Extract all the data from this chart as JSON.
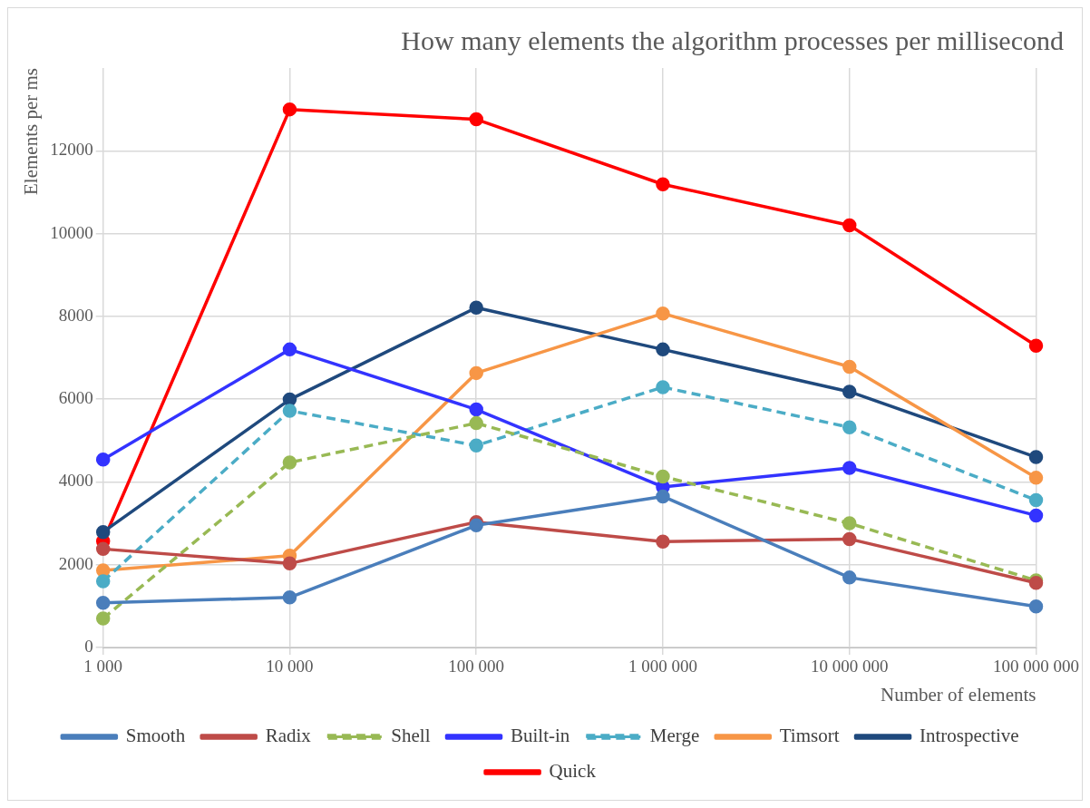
{
  "chart_data": {
    "type": "line",
    "title": "How many elements the algorithm processes per millisecond",
    "xlabel": "Number of elements",
    "ylabel": "Elements per ms",
    "categories": [
      "1 000",
      "10 000",
      "100 000",
      "1 000 000",
      "10 000 000",
      "100 000 000"
    ],
    "series": [
      {
        "name": "Smooth",
        "color": "#4a7ebb",
        "line_style": "solid",
        "values": [
          1080,
          1210,
          2950,
          3650,
          1690,
          990
        ]
      },
      {
        "name": "Radix",
        "color": "#be4b48",
        "line_style": "solid",
        "values": [
          2380,
          2030,
          3030,
          2560,
          2620,
          1560
        ]
      },
      {
        "name": "Shell",
        "color": "#98b954",
        "line_style": "dashed",
        "values": [
          700,
          4470,
          5420,
          4130,
          3000,
          1620
        ]
      },
      {
        "name": "Built-in",
        "color": "#3333ff",
        "line_style": "solid",
        "values": [
          4540,
          7200,
          5750,
          3880,
          4340,
          3190
        ]
      },
      {
        "name": "Merge",
        "color": "#4bacc6",
        "line_style": "dashed",
        "values": [
          1600,
          5720,
          4880,
          6290,
          5320,
          3560
        ]
      },
      {
        "name": "Timsort",
        "color": "#f79646",
        "line_style": "solid",
        "values": [
          1860,
          2220,
          6630,
          8070,
          6780,
          4100
        ]
      },
      {
        "name": "Introspective",
        "color": "#1f497d",
        "line_style": "solid",
        "values": [
          2790,
          5990,
          8210,
          7200,
          6180,
          4600
        ]
      },
      {
        "name": "Quick",
        "color": "#ff0000",
        "line_style": "solid",
        "values": [
          2570,
          13000,
          12760,
          11190,
          10200,
          7290
        ]
      }
    ],
    "ylim": [
      0,
      14000
    ],
    "yticks": [
      0,
      2000,
      4000,
      6000,
      8000,
      10000,
      12000
    ],
    "grid": true,
    "legend": "bottom",
    "marker": "circle"
  }
}
